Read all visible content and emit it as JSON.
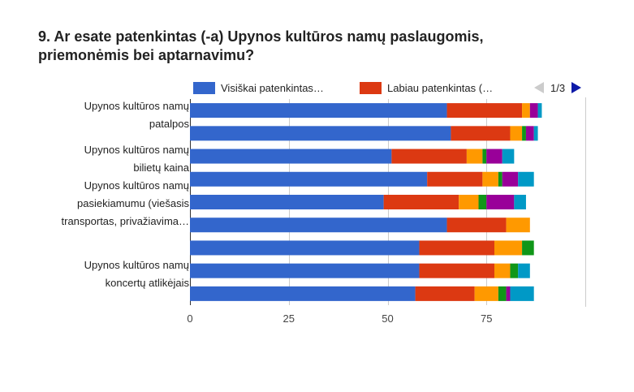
{
  "title_line1": "9. Ar esate patenkintas (-a) Upynos kultūros namų paslaugomis,",
  "title_line2": "priemonėmis bei aptarnavimu?",
  "legend": {
    "items": [
      {
        "label": "Visiškai patenkintas…",
        "color": "#3366cc"
      },
      {
        "label": "Labiau patenkintas (…",
        "color": "#dc3912"
      }
    ],
    "page": "1/3"
  },
  "colors": [
    "#3366cc",
    "#dc3912",
    "#ff9900",
    "#109618",
    "#990099",
    "#0099c6"
  ],
  "y_labels": [
    {
      "lines": [
        "Upynos kultūros namų",
        "patalpos"
      ]
    },
    {
      "lines": [
        "Upynos kultūros namų",
        "bilietų kaina"
      ]
    },
    {
      "lines": [
        "Upynos kultūros namų",
        "pasiekiamumu (viešasis",
        "transportas, privažiavima…"
      ]
    },
    {
      "lines": [
        "Upynos kultūros namų",
        "koncertų atlikėjais"
      ]
    }
  ],
  "chart_data": {
    "type": "bar",
    "orientation": "horizontal",
    "stacked": true,
    "xlim": [
      0,
      100
    ],
    "x_ticks": [
      "0",
      "25",
      "50",
      "75"
    ],
    "rows": [
      [
        65,
        19,
        2,
        0,
        2,
        1
      ],
      [
        66,
        15,
        3,
        1,
        2,
        1
      ],
      [
        51,
        19,
        4,
        1,
        4,
        3
      ],
      [
        60,
        14,
        4,
        1,
        4,
        4
      ],
      [
        49,
        19,
        5,
        2,
        7,
        3
      ],
      [
        65,
        15,
        6,
        0,
        0,
        0
      ],
      [
        58,
        19,
        7,
        3,
        0,
        0
      ],
      [
        58,
        19,
        4,
        2,
        0,
        3
      ],
      [
        57,
        15,
        6,
        2,
        1,
        6
      ]
    ]
  }
}
